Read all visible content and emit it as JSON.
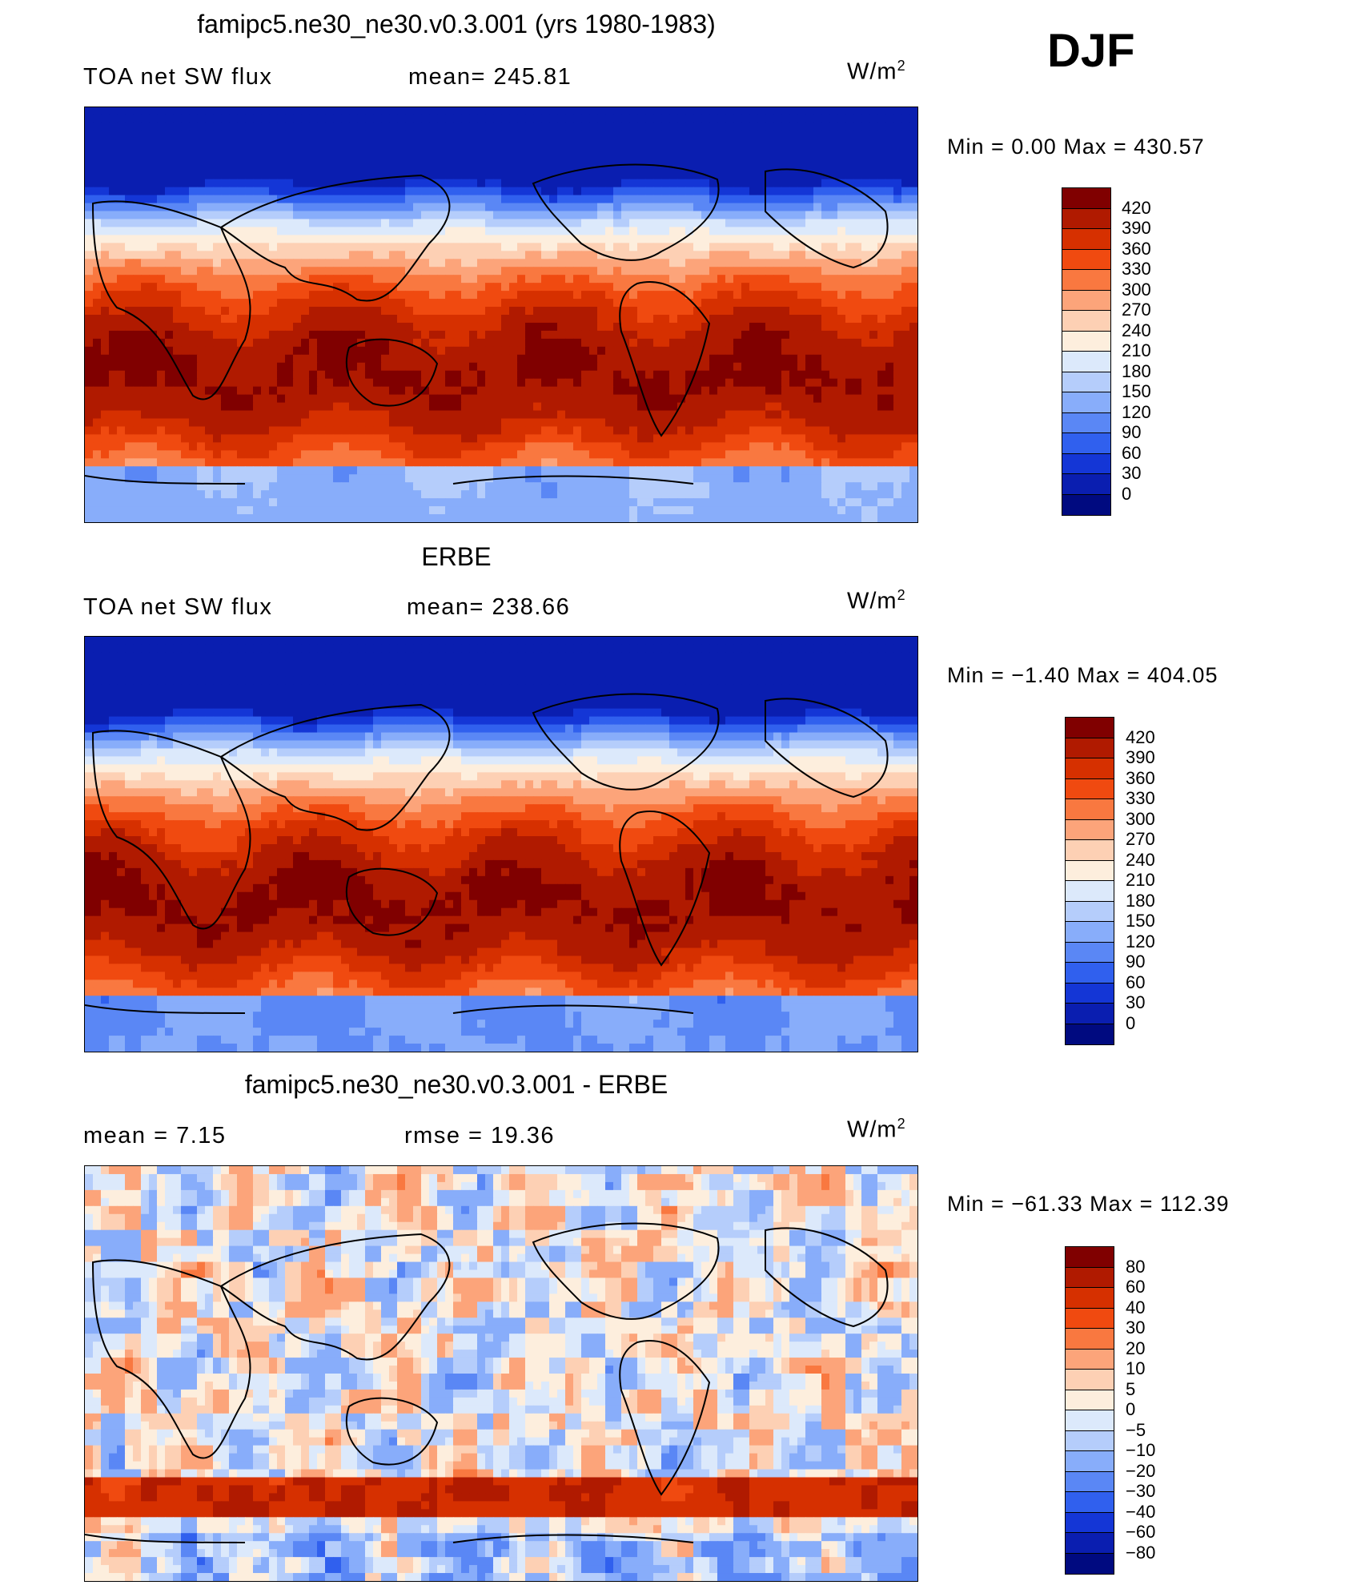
{
  "season": "DJF",
  "panels": [
    {
      "title": "famipc5.ne30_ne30.v0.3.001 (yrs 1980-1983)",
      "left_label": "TOA net SW flux",
      "mid_label": "mean= 245.81",
      "unit": "W/m",
      "unit_sup": "2",
      "minmax": "Min =    0.00  Max  =  430.57",
      "field_type": "absolute",
      "colorbar_labels": [
        "420",
        "390",
        "360",
        "330",
        "300",
        "270",
        "240",
        "210",
        "180",
        "150",
        "120",
        "90",
        "60",
        "30",
        "0"
      ]
    },
    {
      "title": "ERBE",
      "left_label": "TOA net SW flux",
      "mid_label": "mean= 238.66",
      "unit": "W/m",
      "unit_sup": "2",
      "minmax": "Min =   −1.40  Max  =  404.05",
      "field_type": "absolute",
      "colorbar_labels": [
        "420",
        "390",
        "360",
        "330",
        "300",
        "270",
        "240",
        "210",
        "180",
        "150",
        "120",
        "90",
        "60",
        "30",
        "0"
      ]
    },
    {
      "title": "famipc5.ne30_ne30.v0.3.001 - ERBE",
      "left_label": "mean =     7.15",
      "mid_label": "rmse  =    19.36",
      "unit": "W/m",
      "unit_sup": "2",
      "minmax": "Min  = −61.33  Max  =  112.39",
      "field_type": "difference",
      "colorbar_labels": [
        "80",
        "60",
        "40",
        "30",
        "20",
        "10",
        "5",
        "0",
        "−5",
        "−10",
        "−20",
        "−30",
        "−40",
        "−60",
        "−80"
      ]
    }
  ],
  "colors": {
    "abs_scale": [
      "#800000",
      "#b01a00",
      "#d63000",
      "#f04a10",
      "#f97840",
      "#fca47a",
      "#fdd0b4",
      "#fdeedd",
      "#dce9fb",
      "#b5cdfb",
      "#88adfa",
      "#5a87f5",
      "#3060ee",
      "#1436d6",
      "#0a1eb0",
      "#000a80"
    ],
    "diff_scale": [
      "#800000",
      "#b01a00",
      "#d63000",
      "#f04a10",
      "#f97840",
      "#fca47a",
      "#fdd0b4",
      "#fdeedd",
      "#dce9fb",
      "#b5cdfb",
      "#88adfa",
      "#5a87f5",
      "#3060ee",
      "#1436d6",
      "#0a1eb0",
      "#000a80"
    ]
  }
}
